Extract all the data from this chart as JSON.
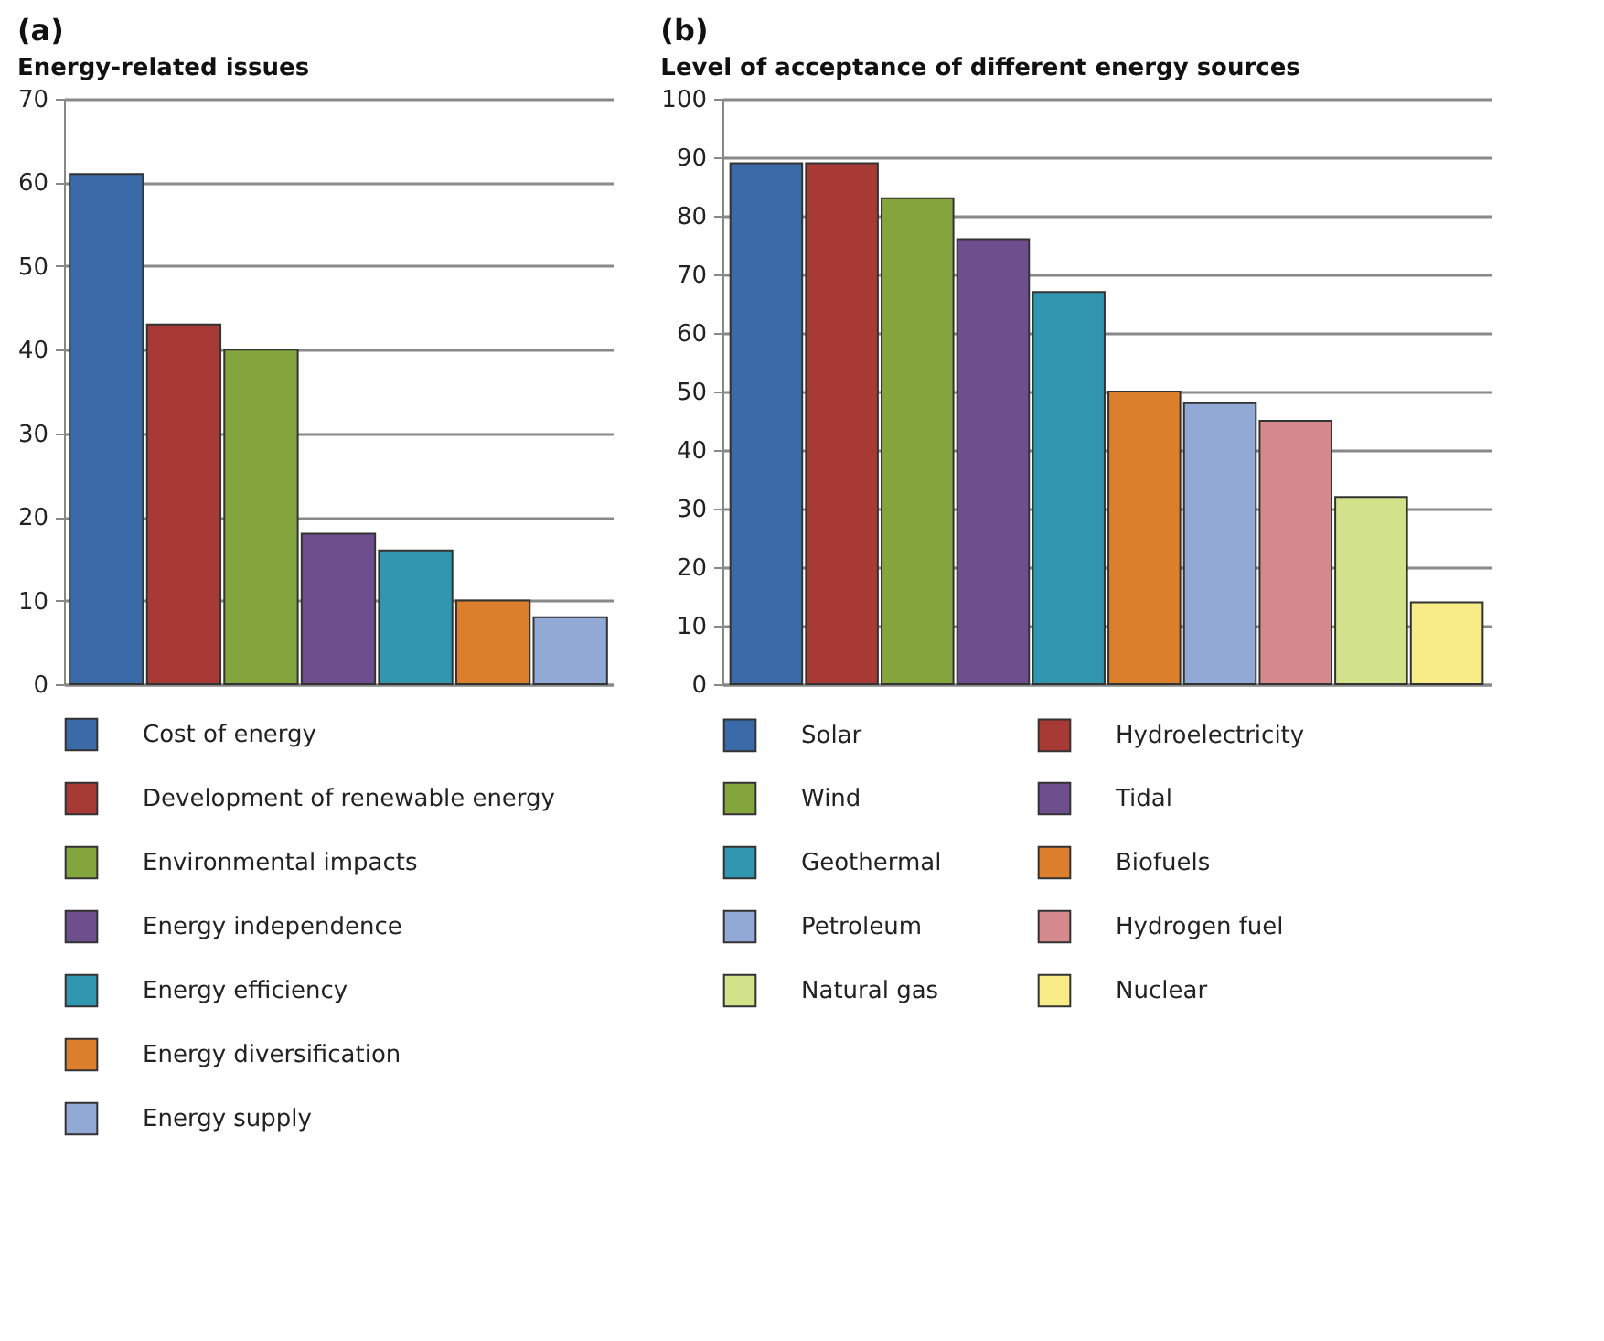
{
  "chart_data": [
    {
      "type": "bar",
      "title": "Energy-related issues",
      "annotations": [
        "(a)"
      ],
      "categories": [
        null
      ],
      "series": [
        {
          "name": "Cost of energy",
          "color": "#3a6aa8",
          "values": [
            61
          ]
        },
        {
          "name": "Development of renewable energy",
          "color": "#a83a36",
          "values": [
            43
          ]
        },
        {
          "name": "Environmental impacts",
          "color": "#84a43e",
          "values": [
            40
          ]
        },
        {
          "name": "Energy independence",
          "color": "#6e4f8e",
          "values": [
            18
          ]
        },
        {
          "name": "Energy efficiency",
          "color": "#3196b0",
          "values": [
            16
          ]
        },
        {
          "name": "Energy diversification",
          "color": "#dc7f2c",
          "values": [
            10
          ]
        },
        {
          "name": "Energy supply",
          "color": "#91a9d4",
          "values": [
            8
          ]
        }
      ],
      "ylim": [
        0,
        70
      ],
      "yticks": [
        0,
        10,
        20,
        30,
        40,
        50,
        60,
        70
      ],
      "grid": "y",
      "legend": "bottom",
      "tick_labels": "y"
    },
    {
      "type": "bar",
      "title": "Level of acceptance of different energy sources",
      "annotations": [
        "(b)"
      ],
      "categories": [
        null
      ],
      "series": [
        {
          "name": "Solar",
          "color": "#3a6aa8",
          "values": [
            89
          ]
        },
        {
          "name": "Hydroelectricity",
          "color": "#a83a36",
          "values": [
            89
          ]
        },
        {
          "name": "Wind",
          "color": "#84a43e",
          "values": [
            83
          ]
        },
        {
          "name": "Tidal",
          "color": "#6e4f8e",
          "values": [
            76
          ]
        },
        {
          "name": "Geothermal",
          "color": "#3196b0",
          "values": [
            67
          ]
        },
        {
          "name": "Biofuels",
          "color": "#dc7f2c",
          "values": [
            50
          ]
        },
        {
          "name": "Petroleum",
          "color": "#91a9d4",
          "values": [
            48
          ]
        },
        {
          "name": "Hydrogen fuel",
          "color": "#d4898c",
          "values": [
            45
          ]
        },
        {
          "name": "Natural gas",
          "color": "#d2e28a",
          "values": [
            32
          ]
        },
        {
          "name": "Nuclear",
          "color": "#f8ec88",
          "values": [
            14
          ]
        }
      ],
      "ylim": [
        0,
        100
      ],
      "yticks": [
        0,
        10,
        20,
        30,
        40,
        50,
        60,
        70,
        80,
        90,
        100
      ],
      "grid": "y",
      "legend": "bottom",
      "tick_labels": "y"
    }
  ]
}
